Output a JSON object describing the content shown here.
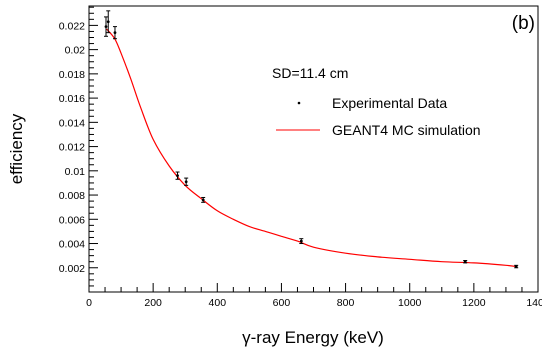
{
  "chart_data": {
    "type": "scatter",
    "panel_label": "(b)",
    "annotation": "SD=11.4 cm",
    "xlabel": "γ-ray Energy (keV)",
    "ylabel": "efficiency",
    "xlim": [
      0,
      1400
    ],
    "ylim": [
      0,
      0.0236
    ],
    "x_ticks": [
      0,
      200,
      400,
      600,
      800,
      1000,
      1200,
      1400
    ],
    "y_ticks": [
      0.002,
      0.004,
      0.006,
      0.008,
      0.01,
      0.012,
      0.014,
      0.016,
      0.018,
      0.02,
      0.022
    ],
    "y_tick_labels": [
      "0.002",
      "0.004",
      "0.006",
      "0.008",
      "0.01",
      "0.012",
      "0.014",
      "0.016",
      "0.018",
      "0.02",
      "0.022"
    ],
    "grid": false,
    "legend_position": "upper-right",
    "series": [
      {
        "name": "Experimental Data",
        "kind": "points_with_errorbars",
        "color": "#000000",
        "x": [
          53,
          60,
          81,
          276,
          303,
          356,
          662,
          1173,
          1332
        ],
        "y": [
          0.0219,
          0.0223,
          0.0214,
          0.0096,
          0.0091,
          0.0076,
          0.0042,
          0.0025,
          0.0021
        ],
        "yerr": [
          0.0008,
          0.0009,
          0.0005,
          0.0003,
          0.0003,
          0.0002,
          0.0002,
          0.0001,
          0.0001
        ]
      },
      {
        "name": "GEANT4 MC simulation",
        "kind": "line",
        "color": "#ff0000",
        "x": [
          55,
          80,
          100,
          130,
          160,
          200,
          250,
          300,
          350,
          400,
          450,
          500,
          550,
          600,
          650,
          700,
          800,
          900,
          1000,
          1100,
          1200,
          1300,
          1332
        ],
        "y": [
          0.0217,
          0.0209,
          0.0197,
          0.0176,
          0.0153,
          0.0126,
          0.0104,
          0.0088,
          0.0077,
          0.0067,
          0.006,
          0.0054,
          0.005,
          0.0046,
          0.0042,
          0.0037,
          0.0032,
          0.0029,
          0.0027,
          0.0025,
          0.0024,
          0.0022,
          0.0021
        ]
      }
    ]
  }
}
